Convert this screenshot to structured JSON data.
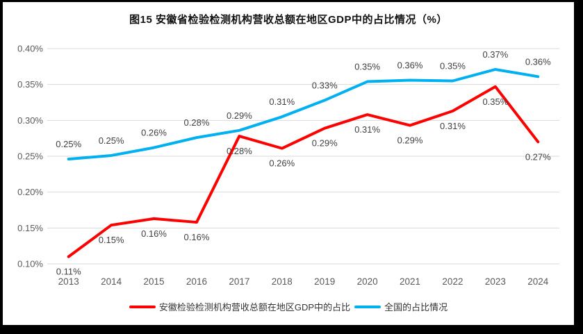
{
  "page": {
    "background_color": "#ffffff",
    "frame_color": "#000000"
  },
  "chart_data": {
    "type": "line",
    "title": "图15 安徽省检验检测机构营收总额在地区GDP中的占比情况（%）",
    "categories": [
      "2013",
      "2014",
      "2015",
      "2016",
      "2017",
      "2018",
      "2019",
      "2020",
      "2021",
      "2022",
      "2023",
      "2024"
    ],
    "series": [
      {
        "name": "安徽检验检测机构营收总额在地区GDP中的占比",
        "color": "#FF0000",
        "values": [
          0.11,
          0.15,
          0.16,
          0.16,
          0.28,
          0.26,
          0.29,
          0.31,
          0.29,
          0.31,
          0.35,
          0.27
        ],
        "labels": [
          "0.11%",
          "0.15%",
          "0.16%",
          "0.16%",
          "0.28%",
          "0.26%",
          "0.29%",
          "0.31%",
          "0.29%",
          "0.31%",
          "0.35%",
          "0.27%"
        ],
        "plot_values": [
          0.11,
          0.154,
          0.163,
          0.158,
          0.278,
          0.261,
          0.289,
          0.308,
          0.293,
          0.313,
          0.347,
          0.27
        ],
        "label_side": "below"
      },
      {
        "name": "全国的占比情况",
        "color": "#00B0F0",
        "values": [
          0.25,
          0.25,
          0.26,
          0.28,
          0.29,
          0.31,
          0.33,
          0.35,
          0.36,
          0.35,
          0.37,
          0.36
        ],
        "labels": [
          "0.25%",
          "0.25%",
          "0.26%",
          "0.28%",
          "0.29%",
          "0.31%",
          "0.33%",
          "0.35%",
          "0.36%",
          "0.35%",
          "0.37%",
          "0.36%"
        ],
        "plot_values": [
          0.246,
          0.251,
          0.262,
          0.276,
          0.286,
          0.305,
          0.328,
          0.354,
          0.356,
          0.355,
          0.371,
          0.361
        ],
        "label_side": "above"
      }
    ],
    "ylim": [
      0.1,
      0.4
    ],
    "yticks": [
      0.1,
      0.15,
      0.2,
      0.25,
      0.3,
      0.35,
      0.4
    ],
    "ytick_labels": [
      "0.10%",
      "0.15%",
      "0.20%",
      "0.25%",
      "0.30%",
      "0.35%",
      "0.40%"
    ],
    "grid": true,
    "legend_position": "bottom",
    "gridline_color": "#D9D9D9",
    "axis_text_color": "#595959",
    "data_label_color": "#404040"
  }
}
